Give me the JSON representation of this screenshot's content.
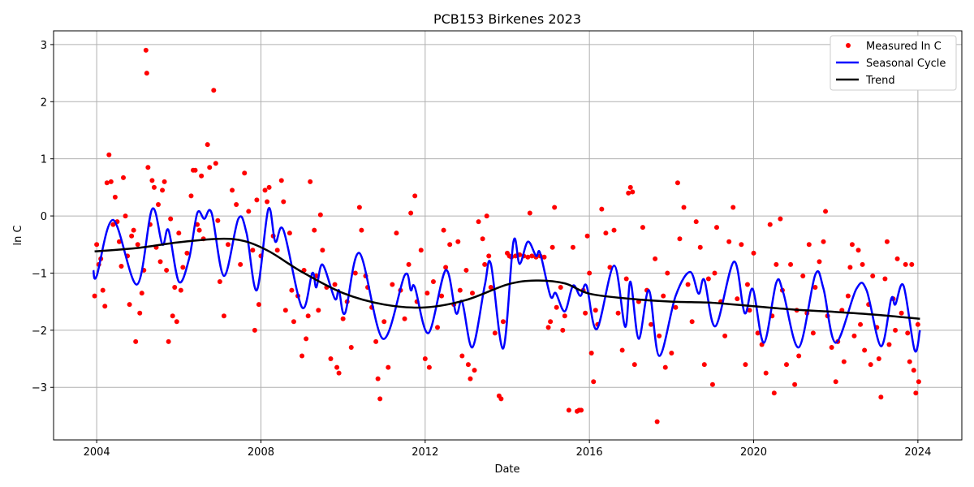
{
  "chart_data": {
    "type": "line",
    "title": "PCB153 Birkenes 2023",
    "xlabel": "Date",
    "ylabel": "ln C",
    "xlim": [
      2002.95,
      2025.07
    ],
    "ylim": [
      -3.92,
      3.24
    ],
    "grid": true,
    "legend_position": "top-right",
    "xticks": [
      2004,
      2008,
      2012,
      2016,
      2020,
      2024
    ],
    "xtick_labels": [
      "2004",
      "2008",
      "2012",
      "2016",
      "2020",
      "2024"
    ],
    "yticks": [
      -3,
      -2,
      -1,
      0,
      1,
      2,
      3
    ],
    "ytick_labels": [
      "−3",
      "−2",
      "−1",
      "0",
      "1",
      "2",
      "3"
    ],
    "legend": [
      "Measured ln C",
      "Seasonal Cycle",
      "Trend"
    ],
    "colors": {
      "measured": "#ff0000",
      "seasonal": "#0000ff",
      "trend": "#000000"
    },
    "trend": [
      [
        2003.95,
        -0.62
      ],
      [
        2005,
        -0.56
      ],
      [
        2006,
        -0.46
      ],
      [
        2007,
        -0.4
      ],
      [
        2007.6,
        -0.44
      ],
      [
        2008.2,
        -0.62
      ],
      [
        2009,
        -0.98
      ],
      [
        2010,
        -1.35
      ],
      [
        2011,
        -1.55
      ],
      [
        2012,
        -1.6
      ],
      [
        2013,
        -1.47
      ],
      [
        2014,
        -1.2
      ],
      [
        2014.7,
        -1.13
      ],
      [
        2015.4,
        -1.18
      ],
      [
        2016,
        -1.36
      ],
      [
        2017,
        -1.45
      ],
      [
        2018,
        -1.5
      ],
      [
        2019,
        -1.52
      ],
      [
        2020,
        -1.58
      ],
      [
        2021,
        -1.64
      ],
      [
        2022,
        -1.68
      ],
      [
        2023,
        -1.73
      ],
      [
        2024.05,
        -1.8
      ]
    ],
    "seasonal": [
      [
        2003.92,
        -0.95
      ],
      [
        2004.0,
        -1.05
      ],
      [
        2004.4,
        -0.07
      ],
      [
        2004.98,
        -1.2
      ],
      [
        2005.35,
        0.12
      ],
      [
        2005.6,
        -0.5
      ],
      [
        2005.75,
        -0.25
      ],
      [
        2006.0,
        -1.15
      ],
      [
        2006.25,
        -0.75
      ],
      [
        2006.45,
        0.05
      ],
      [
        2006.62,
        -0.05
      ],
      [
        2006.8,
        0.05
      ],
      [
        2007.1,
        -1.05
      ],
      [
        2007.45,
        -0.05
      ],
      [
        2007.65,
        -0.3
      ],
      [
        2007.9,
        -1.3
      ],
      [
        2008.18,
        0.12
      ],
      [
        2008.35,
        -0.45
      ],
      [
        2008.55,
        -0.25
      ],
      [
        2009.0,
        -1.6
      ],
      [
        2009.25,
        -1.0
      ],
      [
        2009.35,
        -1.25
      ],
      [
        2009.5,
        -0.85
      ],
      [
        2009.8,
        -1.45
      ],
      [
        2009.9,
        -1.3
      ],
      [
        2010.05,
        -1.7
      ],
      [
        2010.4,
        -0.65
      ],
      [
        2010.97,
        -2.15
      ],
      [
        2011.5,
        -1.04
      ],
      [
        2011.65,
        -1.3
      ],
      [
        2011.75,
        -1.25
      ],
      [
        2012.08,
        -2.05
      ],
      [
        2012.5,
        -0.95
      ],
      [
        2012.75,
        -1.7
      ],
      [
        2012.9,
        -1.5
      ],
      [
        2013.15,
        -2.3
      ],
      [
        2013.45,
        -1.22
      ],
      [
        2013.6,
        -0.84
      ],
      [
        2013.9,
        -2.32
      ],
      [
        2014.15,
        -0.45
      ],
      [
        2014.3,
        -0.84
      ],
      [
        2014.5,
        -0.45
      ],
      [
        2014.7,
        -0.7
      ],
      [
        2014.8,
        -0.65
      ],
      [
        2015.05,
        -1.4
      ],
      [
        2015.18,
        -1.35
      ],
      [
        2015.4,
        -1.67
      ],
      [
        2015.6,
        -1.22
      ],
      [
        2015.78,
        -1.4
      ],
      [
        2015.93,
        -1.22
      ],
      [
        2016.18,
        -1.98
      ],
      [
        2016.6,
        -0.87
      ],
      [
        2016.87,
        -1.94
      ],
      [
        2017.0,
        -1.15
      ],
      [
        2017.2,
        -2.15
      ],
      [
        2017.45,
        -1.3
      ],
      [
        2017.7,
        -2.45
      ],
      [
        2018.1,
        -1.4
      ],
      [
        2018.45,
        -0.98
      ],
      [
        2018.66,
        -1.36
      ],
      [
        2018.8,
        -1.12
      ],
      [
        2019.07,
        -1.93
      ],
      [
        2019.52,
        -0.8
      ],
      [
        2019.78,
        -1.7
      ],
      [
        2019.98,
        -1.28
      ],
      [
        2020.25,
        -2.22
      ],
      [
        2020.55,
        -1.17
      ],
      [
        2020.72,
        -1.34
      ],
      [
        2021.1,
        -2.3
      ],
      [
        2021.5,
        -1.03
      ],
      [
        2021.7,
        -1.27
      ],
      [
        2022.0,
        -2.22
      ],
      [
        2022.5,
        -1.28
      ],
      [
        2022.75,
        -1.3
      ],
      [
        2023.1,
        -2.28
      ],
      [
        2023.35,
        -1.45
      ],
      [
        2023.45,
        -1.55
      ],
      [
        2023.65,
        -1.22
      ],
      [
        2023.92,
        -2.35
      ],
      [
        2024.05,
        -2.0
      ]
    ],
    "measured": [
      [
        2003.95,
        -1.4
      ],
      [
        2004.0,
        -0.5
      ],
      [
        2004.05,
        -0.85
      ],
      [
        2004.1,
        -0.75
      ],
      [
        2004.15,
        -1.3
      ],
      [
        2004.2,
        -1.58
      ],
      [
        2004.25,
        0.58
      ],
      [
        2004.3,
        1.07
      ],
      [
        2004.35,
        0.6
      ],
      [
        2004.4,
        -0.15
      ],
      [
        2004.45,
        0.33
      ],
      [
        2004.5,
        -0.1
      ],
      [
        2004.55,
        -0.45
      ],
      [
        2004.6,
        -0.88
      ],
      [
        2004.65,
        0.67
      ],
      [
        2004.7,
        0.0
      ],
      [
        2004.75,
        -0.7
      ],
      [
        2004.8,
        -1.55
      ],
      [
        2004.85,
        -0.35
      ],
      [
        2004.9,
        -0.25
      ],
      [
        2004.95,
        -2.2
      ],
      [
        2005.0,
        -0.5
      ],
      [
        2005.05,
        -1.7
      ],
      [
        2005.1,
        -1.35
      ],
      [
        2005.15,
        -0.95
      ],
      [
        2005.2,
        2.9
      ],
      [
        2005.22,
        2.5
      ],
      [
        2005.25,
        0.85
      ],
      [
        2005.3,
        -0.15
      ],
      [
        2005.35,
        0.62
      ],
      [
        2005.4,
        0.5
      ],
      [
        2005.45,
        -0.55
      ],
      [
        2005.5,
        0.2
      ],
      [
        2005.55,
        -0.8
      ],
      [
        2005.6,
        0.45
      ],
      [
        2005.65,
        0.6
      ],
      [
        2005.7,
        -0.95
      ],
      [
        2005.75,
        -2.2
      ],
      [
        2005.8,
        -0.05
      ],
      [
        2005.85,
        -1.75
      ],
      [
        2005.9,
        -1.25
      ],
      [
        2005.95,
        -1.85
      ],
      [
        2006.0,
        -0.3
      ],
      [
        2006.05,
        -1.3
      ],
      [
        2006.1,
        -0.9
      ],
      [
        2006.2,
        -0.65
      ],
      [
        2006.3,
        0.35
      ],
      [
        2006.35,
        0.8
      ],
      [
        2006.4,
        0.8
      ],
      [
        2006.45,
        -0.15
      ],
      [
        2006.5,
        -0.25
      ],
      [
        2006.55,
        0.7
      ],
      [
        2006.6,
        -0.4
      ],
      [
        2006.7,
        1.25
      ],
      [
        2006.75,
        0.85
      ],
      [
        2006.85,
        2.2
      ],
      [
        2006.9,
        0.92
      ],
      [
        2006.95,
        -0.08
      ],
      [
        2007.0,
        -1.15
      ],
      [
        2007.1,
        -1.75
      ],
      [
        2007.2,
        -0.5
      ],
      [
        2007.3,
        0.45
      ],
      [
        2007.4,
        0.2
      ],
      [
        2007.5,
        -0.85
      ],
      [
        2007.6,
        0.75
      ],
      [
        2007.7,
        0.08
      ],
      [
        2007.8,
        -0.6
      ],
      [
        2007.85,
        -2.0
      ],
      [
        2007.9,
        0.28
      ],
      [
        2007.95,
        -1.55
      ],
      [
        2008.0,
        -0.7
      ],
      [
        2008.1,
        0.45
      ],
      [
        2008.15,
        0.25
      ],
      [
        2008.2,
        0.5
      ],
      [
        2008.3,
        -0.35
      ],
      [
        2008.4,
        -0.6
      ],
      [
        2008.5,
        0.62
      ],
      [
        2008.55,
        0.25
      ],
      [
        2008.6,
        -1.65
      ],
      [
        2008.7,
        -0.3
      ],
      [
        2008.75,
        -1.3
      ],
      [
        2008.8,
        -1.85
      ],
      [
        2008.9,
        -1.4
      ],
      [
        2009.0,
        -2.45
      ],
      [
        2009.05,
        -0.95
      ],
      [
        2009.1,
        -2.15
      ],
      [
        2009.15,
        -1.75
      ],
      [
        2009.2,
        0.6
      ],
      [
        2009.3,
        -0.25
      ],
      [
        2009.35,
        -1.05
      ],
      [
        2009.4,
        -1.65
      ],
      [
        2009.45,
        0.02
      ],
      [
        2009.5,
        -0.6
      ],
      [
        2009.6,
        -1.25
      ],
      [
        2009.7,
        -2.5
      ],
      [
        2009.8,
        -1.2
      ],
      [
        2009.85,
        -2.65
      ],
      [
        2009.9,
        -2.75
      ],
      [
        2010.0,
        -1.8
      ],
      [
        2010.1,
        -1.5
      ],
      [
        2010.2,
        -2.3
      ],
      [
        2010.3,
        -1.0
      ],
      [
        2010.4,
        0.15
      ],
      [
        2010.45,
        -0.25
      ],
      [
        2010.55,
        -1.05
      ],
      [
        2010.6,
        -1.25
      ],
      [
        2010.7,
        -1.6
      ],
      [
        2010.8,
        -2.2
      ],
      [
        2010.85,
        -2.85
      ],
      [
        2010.9,
        -3.2
      ],
      [
        2011.0,
        -1.85
      ],
      [
        2011.1,
        -2.65
      ],
      [
        2011.2,
        -1.2
      ],
      [
        2011.3,
        -0.3
      ],
      [
        2011.4,
        -1.3
      ],
      [
        2011.5,
        -1.8
      ],
      [
        2011.6,
        -0.85
      ],
      [
        2011.65,
        0.05
      ],
      [
        2011.75,
        0.35
      ],
      [
        2011.8,
        -1.5
      ],
      [
        2011.9,
        -0.6
      ],
      [
        2012.0,
        -2.5
      ],
      [
        2012.05,
        -1.35
      ],
      [
        2012.1,
        -2.65
      ],
      [
        2012.2,
        -1.15
      ],
      [
        2012.3,
        -1.95
      ],
      [
        2012.4,
        -1.4
      ],
      [
        2012.45,
        -0.25
      ],
      [
        2012.5,
        -0.9
      ],
      [
        2012.6,
        -0.5
      ],
      [
        2012.7,
        -1.55
      ],
      [
        2012.8,
        -0.45
      ],
      [
        2012.85,
        -1.3
      ],
      [
        2012.9,
        -2.45
      ],
      [
        2013.0,
        -0.95
      ],
      [
        2013.05,
        -2.6
      ],
      [
        2013.1,
        -2.85
      ],
      [
        2013.15,
        -1.35
      ],
      [
        2013.2,
        -2.7
      ],
      [
        2013.3,
        -0.1
      ],
      [
        2013.4,
        -0.4
      ],
      [
        2013.45,
        -0.85
      ],
      [
        2013.5,
        0.0
      ],
      [
        2013.55,
        -0.7
      ],
      [
        2013.6,
        -1.25
      ],
      [
        2013.7,
        -2.05
      ],
      [
        2013.8,
        -3.15
      ],
      [
        2013.85,
        -3.2
      ],
      [
        2013.9,
        -1.85
      ],
      [
        2014.0,
        -0.65
      ],
      [
        2014.05,
        -0.7
      ],
      [
        2014.1,
        -0.72
      ],
      [
        2014.2,
        -0.7
      ],
      [
        2014.3,
        -0.68
      ],
      [
        2014.4,
        -0.7
      ],
      [
        2014.5,
        -0.72
      ],
      [
        2014.55,
        0.05
      ],
      [
        2014.6,
        -0.7
      ],
      [
        2014.7,
        -0.72
      ],
      [
        2014.8,
        -0.7
      ],
      [
        2014.9,
        -0.72
      ],
      [
        2015.0,
        -1.95
      ],
      [
        2015.05,
        -1.85
      ],
      [
        2015.1,
        -0.55
      ],
      [
        2015.15,
        0.15
      ],
      [
        2015.2,
        -1.6
      ],
      [
        2015.3,
        -1.25
      ],
      [
        2015.35,
        -2.0
      ],
      [
        2015.4,
        -1.75
      ],
      [
        2015.5,
        -3.4
      ],
      [
        2015.6,
        -0.55
      ],
      [
        2015.7,
        -3.42
      ],
      [
        2015.75,
        -3.4
      ],
      [
        2015.8,
        -3.4
      ],
      [
        2015.85,
        -1.3
      ],
      [
        2015.9,
        -1.7
      ],
      [
        2015.95,
        -0.35
      ],
      [
        2016.0,
        -1.0
      ],
      [
        2016.05,
        -2.4
      ],
      [
        2016.1,
        -2.9
      ],
      [
        2016.15,
        -1.65
      ],
      [
        2016.2,
        -1.9
      ],
      [
        2016.3,
        0.12
      ],
      [
        2016.4,
        -0.3
      ],
      [
        2016.5,
        -0.9
      ],
      [
        2016.6,
        -0.25
      ],
      [
        2016.7,
        -1.7
      ],
      [
        2016.8,
        -2.35
      ],
      [
        2016.9,
        -1.1
      ],
      [
        2016.95,
        0.4
      ],
      [
        2017.0,
        0.5
      ],
      [
        2017.05,
        0.42
      ],
      [
        2017.1,
        -2.6
      ],
      [
        2017.2,
        -1.5
      ],
      [
        2017.3,
        -0.2
      ],
      [
        2017.4,
        -1.3
      ],
      [
        2017.5,
        -1.9
      ],
      [
        2017.6,
        -0.75
      ],
      [
        2017.65,
        -3.6
      ],
      [
        2017.7,
        -2.1
      ],
      [
        2017.8,
        -1.4
      ],
      [
        2017.85,
        -2.65
      ],
      [
        2017.9,
        -1.0
      ],
      [
        2018.0,
        -2.4
      ],
      [
        2018.1,
        -1.6
      ],
      [
        2018.15,
        0.58
      ],
      [
        2018.2,
        -0.4
      ],
      [
        2018.3,
        0.15
      ],
      [
        2018.4,
        -1.2
      ],
      [
        2018.5,
        -1.85
      ],
      [
        2018.6,
        -0.1
      ],
      [
        2018.7,
        -0.55
      ],
      [
        2018.8,
        -2.6
      ],
      [
        2018.9,
        -1.1
      ],
      [
        2019.0,
        -2.95
      ],
      [
        2019.05,
        -1.0
      ],
      [
        2019.1,
        -0.2
      ],
      [
        2019.2,
        -1.5
      ],
      [
        2019.3,
        -2.1
      ],
      [
        2019.4,
        -0.45
      ],
      [
        2019.5,
        0.15
      ],
      [
        2019.6,
        -1.45
      ],
      [
        2019.7,
        -0.5
      ],
      [
        2019.8,
        -2.6
      ],
      [
        2019.85,
        -1.2
      ],
      [
        2019.9,
        -1.65
      ],
      [
        2020.0,
        -0.65
      ],
      [
        2020.1,
        -2.05
      ],
      [
        2020.2,
        -2.25
      ],
      [
        2020.3,
        -2.75
      ],
      [
        2020.4,
        -0.15
      ],
      [
        2020.45,
        -1.75
      ],
      [
        2020.5,
        -3.1
      ],
      [
        2020.55,
        -0.85
      ],
      [
        2020.65,
        -0.05
      ],
      [
        2020.7,
        -1.3
      ],
      [
        2020.8,
        -2.6
      ],
      [
        2020.9,
        -0.85
      ],
      [
        2021.0,
        -2.95
      ],
      [
        2021.05,
        -1.65
      ],
      [
        2021.1,
        -2.45
      ],
      [
        2021.2,
        -1.05
      ],
      [
        2021.3,
        -1.7
      ],
      [
        2021.35,
        -0.5
      ],
      [
        2021.45,
        -2.05
      ],
      [
        2021.5,
        -1.25
      ],
      [
        2021.6,
        -0.8
      ],
      [
        2021.7,
        -0.45
      ],
      [
        2021.75,
        0.08
      ],
      [
        2021.8,
        -1.75
      ],
      [
        2021.9,
        -2.3
      ],
      [
        2022.0,
        -2.9
      ],
      [
        2022.05,
        -2.2
      ],
      [
        2022.15,
        -1.65
      ],
      [
        2022.2,
        -2.55
      ],
      [
        2022.3,
        -1.4
      ],
      [
        2022.35,
        -0.9
      ],
      [
        2022.4,
        -0.5
      ],
      [
        2022.45,
        -2.1
      ],
      [
        2022.55,
        -0.6
      ],
      [
        2022.6,
        -1.9
      ],
      [
        2022.65,
        -0.85
      ],
      [
        2022.7,
        -2.35
      ],
      [
        2022.8,
        -1.55
      ],
      [
        2022.85,
        -2.6
      ],
      [
        2022.9,
        -1.05
      ],
      [
        2023.0,
        -1.95
      ],
      [
        2023.05,
        -2.5
      ],
      [
        2023.1,
        -3.17
      ],
      [
        2023.2,
        -1.1
      ],
      [
        2023.25,
        -0.45
      ],
      [
        2023.3,
        -2.25
      ],
      [
        2023.4,
        -1.45
      ],
      [
        2023.45,
        -2.0
      ],
      [
        2023.5,
        -0.75
      ],
      [
        2023.6,
        -1.7
      ],
      [
        2023.7,
        -0.85
      ],
      [
        2023.75,
        -2.05
      ],
      [
        2023.8,
        -2.55
      ],
      [
        2023.85,
        -0.85
      ],
      [
        2023.9,
        -2.7
      ],
      [
        2023.95,
        -3.1
      ],
      [
        2024.0,
        -1.9
      ],
      [
        2024.02,
        -2.9
      ]
    ]
  }
}
